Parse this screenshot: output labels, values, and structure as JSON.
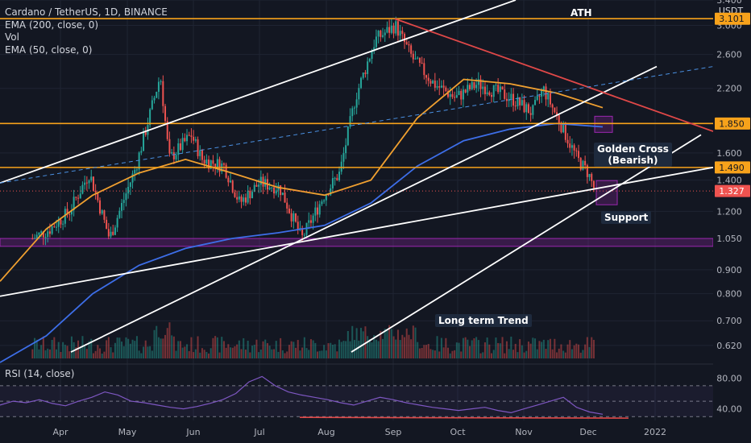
{
  "header": {
    "symbol_line": "Cardano / TetherUS, 1D, BINANCE",
    "indicators": [
      "EMA (200, close, 0)",
      "Vol",
      "EMA (50, close, 0)"
    ],
    "rsi_label": "RSI (14, close)"
  },
  "colors": {
    "background": "#131722",
    "grid": "#1f2433",
    "text": "#b2b5be",
    "up": "#26a69a",
    "down": "#ef5350",
    "ema50": "#f0a030",
    "ema200": "#3d6ee8",
    "hline": "#f7a21b",
    "trendline": "#ffffff",
    "red_line": "#e04848",
    "rsi": "#7e57c2",
    "zone": "#9c27b0"
  },
  "chart_data": [
    {
      "type": "candlestick",
      "title": "Cardano / TetherUS, 1D, BINANCE",
      "y_scale": "log",
      "ylim": [
        0.57,
        3.4
      ],
      "x_ticks": [
        "Apr",
        "May",
        "Jun",
        "Jul",
        "Aug",
        "Sep",
        "Oct",
        "Nov",
        "Dec",
        "2022"
      ],
      "y_ticks": [
        0.62,
        0.7,
        0.8,
        0.9,
        1.05,
        1.2,
        1.4,
        1.6,
        1.85,
        2.2,
        2.6,
        3.0,
        3.4
      ],
      "price_labels": {
        "unit": "USDT",
        "levels": [
          {
            "value": 3.101,
            "label": "3.101",
            "color": "#f7a21b"
          },
          {
            "value": 1.85,
            "label": "1.850",
            "color": "#f7a21b"
          },
          {
            "value": 1.49,
            "label": "1.490",
            "color": "#f7a21b"
          },
          {
            "value": 1.327,
            "label": "1.327",
            "color": "#ef5350"
          }
        ]
      },
      "price_path": [
        {
          "t": "Mar 15",
          "close": 1.05
        },
        {
          "t": "Mar 25",
          "close": 1.1
        },
        {
          "t": "Apr 05",
          "close": 1.2
        },
        {
          "t": "Apr 14",
          "close": 1.45
        },
        {
          "t": "Apr 23",
          "close": 1.05
        },
        {
          "t": "May 05",
          "close": 1.5
        },
        {
          "t": "May 16",
          "close": 2.35
        },
        {
          "t": "May 20",
          "close": 1.55
        },
        {
          "t": "May 30",
          "close": 1.75
        },
        {
          "t": "Jun 05",
          "close": 1.55
        },
        {
          "t": "Jun 15",
          "close": 1.5
        },
        {
          "t": "Jun 22",
          "close": 1.25
        },
        {
          "t": "Jul 01",
          "close": 1.38
        },
        {
          "t": "Jul 10",
          "close": 1.35
        },
        {
          "t": "Jul 20",
          "close": 1.05
        },
        {
          "t": "Jul 30",
          "close": 1.3
        },
        {
          "t": "Aug 07",
          "close": 1.45
        },
        {
          "t": "Aug 14",
          "close": 2.1
        },
        {
          "t": "Aug 23",
          "close": 2.8
        },
        {
          "t": "Sep 02",
          "close": 3.0
        },
        {
          "t": "Sep 10",
          "close": 2.55
        },
        {
          "t": "Sep 20",
          "close": 2.25
        },
        {
          "t": "Sep 30",
          "close": 2.1
        },
        {
          "t": "Oct 10",
          "close": 2.25
        },
        {
          "t": "Oct 25",
          "close": 2.1
        },
        {
          "t": "Nov 05",
          "close": 1.95
        },
        {
          "t": "Nov 10",
          "close": 2.2
        },
        {
          "t": "Nov 18",
          "close": 1.85
        },
        {
          "t": "Nov 26",
          "close": 1.55
        },
        {
          "t": "Dec 01",
          "close": 1.45
        },
        {
          "t": "Dec 04",
          "close": 1.327
        }
      ],
      "series": [
        {
          "name": "EMA (50, close, 0)",
          "values": [
            0.85,
            1.1,
            1.3,
            1.45,
            1.55,
            1.45,
            1.35,
            1.3,
            1.4,
            1.9,
            2.3,
            2.25,
            2.15,
            2.0
          ]
        },
        {
          "name": "EMA (200, close, 0)",
          "values": [
            0.57,
            0.65,
            0.8,
            0.92,
            1.0,
            1.05,
            1.08,
            1.12,
            1.25,
            1.5,
            1.7,
            1.8,
            1.85,
            1.82
          ]
        }
      ],
      "annotations": [
        "ATH",
        "Golden Cross\n(Bearish)",
        "Support",
        "Long term Trend"
      ],
      "support_zone": [
        1.01,
        1.05
      ]
    },
    {
      "type": "line",
      "title": "RSI (14, close)",
      "ylim": [
        25,
        95
      ],
      "y_ticks": [
        80,
        40
      ],
      "guide_lines": [
        70,
        50,
        30
      ],
      "values": [
        45,
        50,
        48,
        52,
        47,
        44,
        50,
        55,
        62,
        58,
        50,
        48,
        45,
        42,
        40,
        43,
        47,
        52,
        60,
        75,
        82,
        70,
        62,
        58,
        55,
        52,
        48,
        45,
        50,
        55,
        52,
        48,
        45,
        42,
        40,
        38,
        40,
        42,
        38,
        35,
        40,
        45,
        50,
        55,
        42,
        36,
        33
      ]
    }
  ],
  "annotations": {
    "ath": "ATH",
    "golden_cross": "Golden Cross",
    "golden_cross_sub": "(Bearish)",
    "support": "Support",
    "long_term_trend": "Long term Trend"
  }
}
